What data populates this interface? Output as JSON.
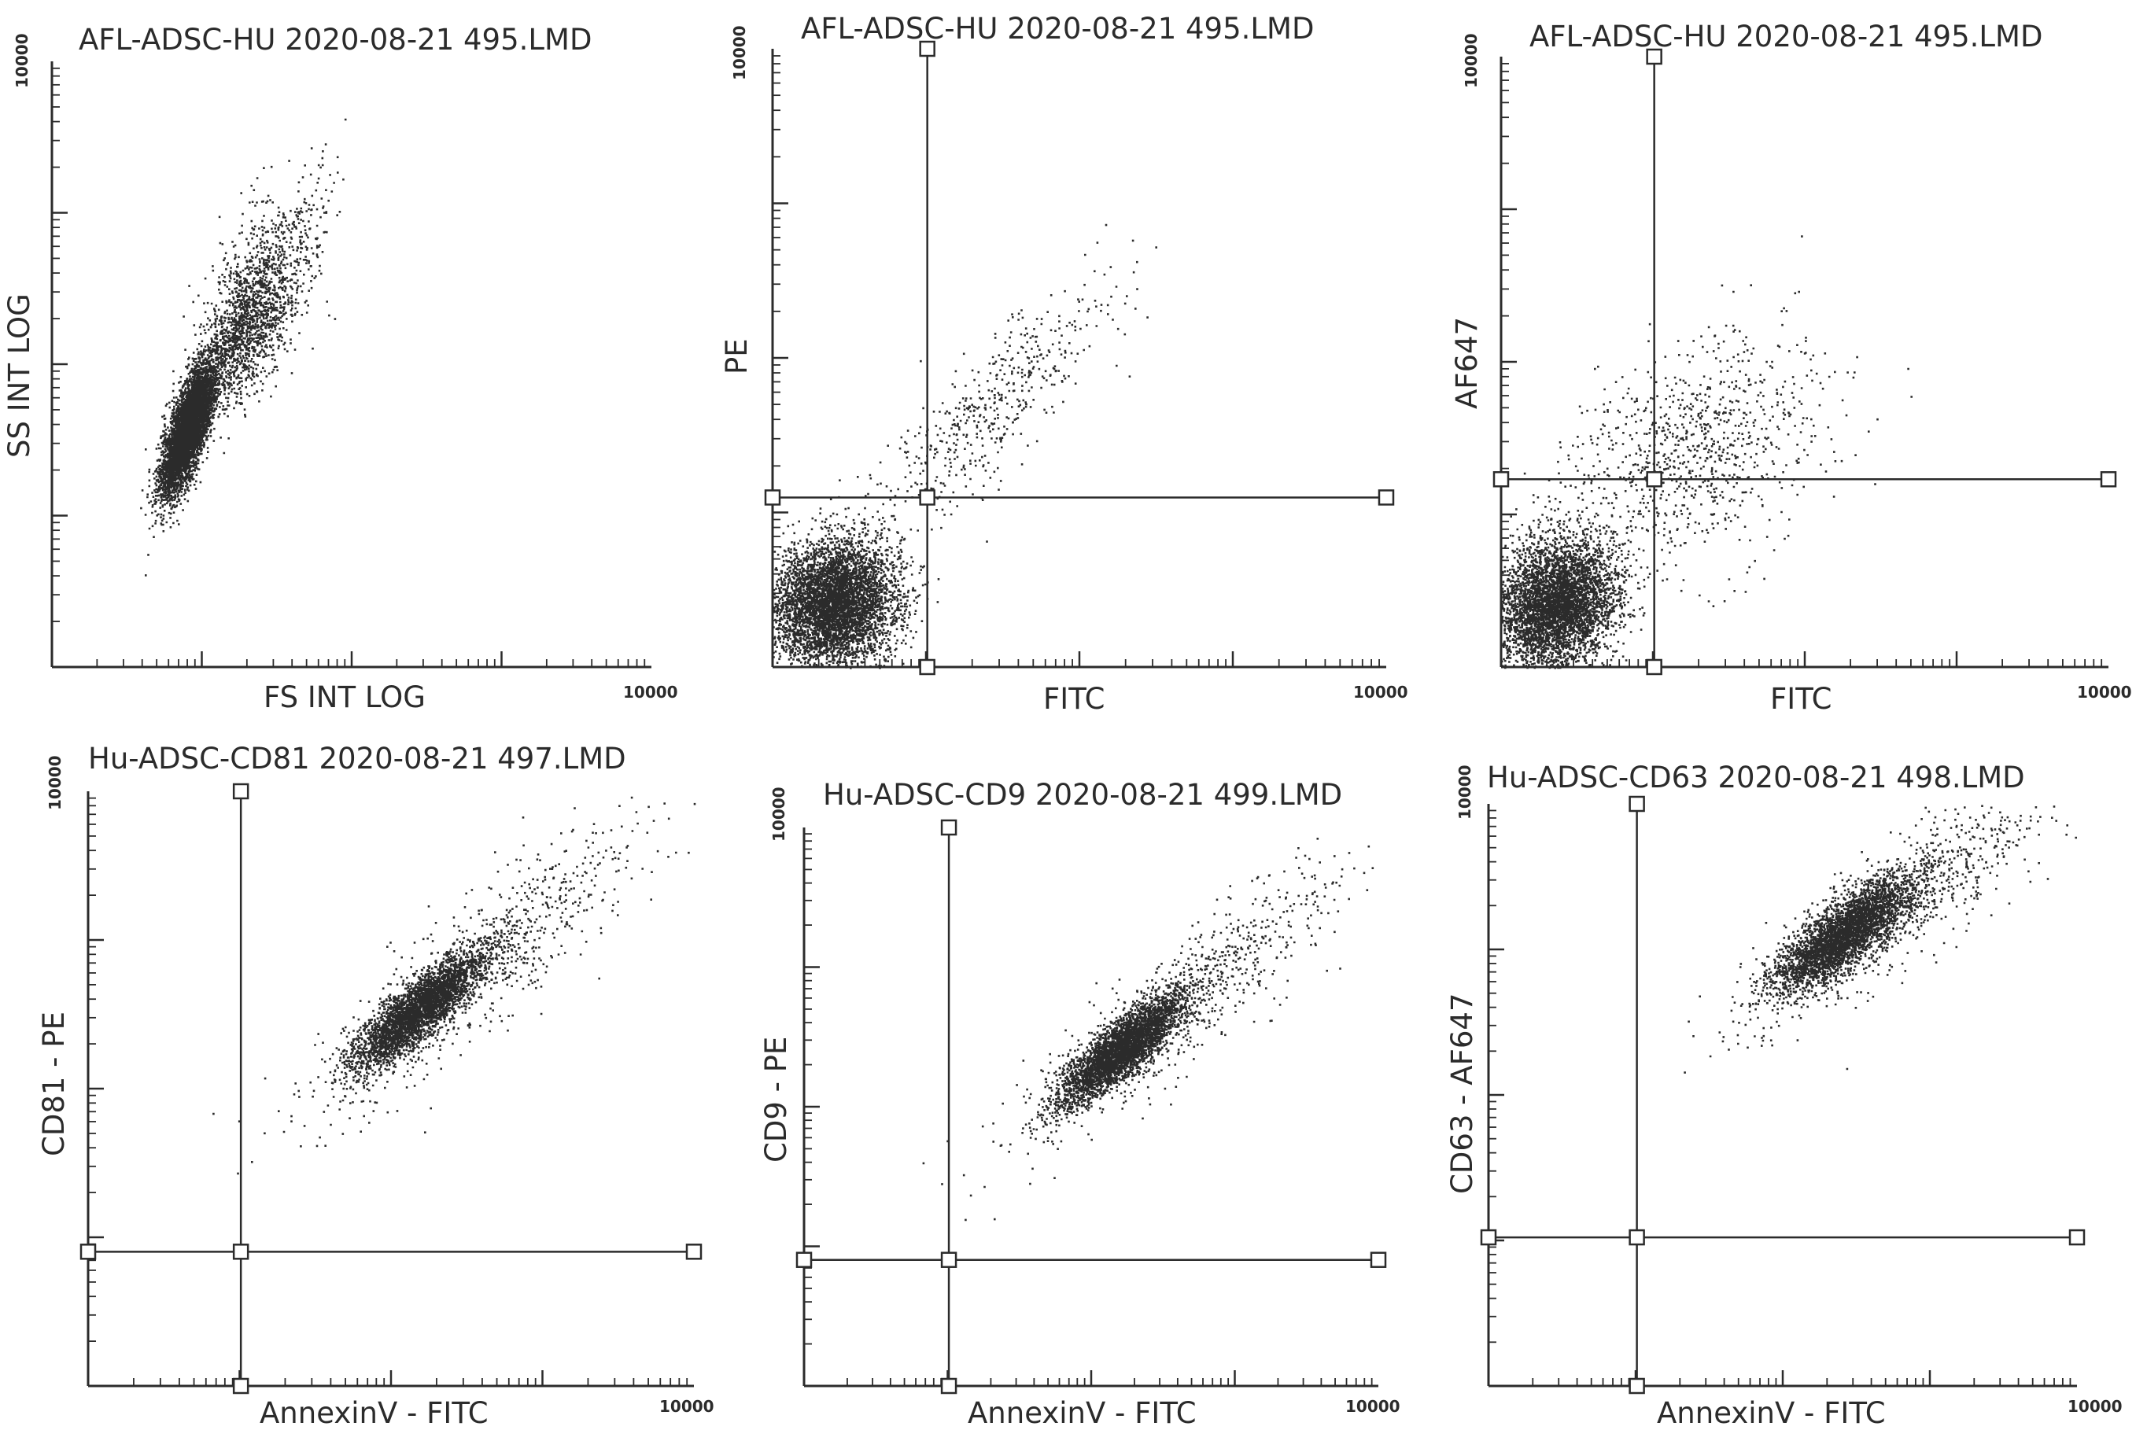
{
  "chart_data": [
    {
      "type": "scatter",
      "title": "AFL-ADSC-HU 2020-08-21 495.LMD",
      "xlabel": "FS INT LOG",
      "ylabel": "SS INT LOG",
      "xscale": "log",
      "yscale": "log",
      "xlim": [
        1,
        10000
      ],
      "ylim": [
        1,
        10000
      ],
      "x_max_label": "10000",
      "y_max_label": "10000",
      "clusters": [
        {
          "cx": 8,
          "cy": 38,
          "sx": 0.09,
          "sy": 0.22,
          "rho": 0.75,
          "n": 5200
        },
        {
          "cx": 20,
          "cy": 180,
          "sx": 0.16,
          "sy": 0.26,
          "rho": 0.6,
          "n": 1400
        },
        {
          "cx": 30,
          "cy": 500,
          "sx": 0.2,
          "sy": 0.3,
          "rho": 0.5,
          "n": 420
        }
      ],
      "gate": null
    },
    {
      "type": "scatter",
      "title": "AFL-ADSC-HU 2020-08-21 495.LMD",
      "xlabel": "FITC",
      "ylabel": "PE",
      "xscale": "log",
      "yscale": "log",
      "xlim": [
        1,
        10000
      ],
      "ylim": [
        1,
        10000
      ],
      "x_max_label": "10000",
      "y_max_label": "10000",
      "clusters": [
        {
          "cx": 2.5,
          "cy": 2.6,
          "sx": 0.2,
          "sy": 0.2,
          "rho": 0.1,
          "n": 5200
        },
        {
          "cx": 25,
          "cy": 45,
          "sx": 0.4,
          "sy": 0.42,
          "rho": 0.85,
          "n": 520
        }
      ],
      "gate": {
        "x": 10.2,
        "y": 12.5
      }
    },
    {
      "type": "scatter",
      "title": "AFL-ADSC-HU 2020-08-21 495.LMD",
      "xlabel": "FITC",
      "ylabel": "AF647",
      "xscale": "log",
      "yscale": "log",
      "xlim": [
        1,
        10000
      ],
      "ylim": [
        1,
        10000
      ],
      "x_max_label": "10000",
      "y_max_label": "10000",
      "clusters": [
        {
          "cx": 2.3,
          "cy": 2.6,
          "sx": 0.2,
          "sy": 0.22,
          "rho": 0.2,
          "n": 4600
        },
        {
          "cx": 18,
          "cy": 26,
          "sx": 0.45,
          "sy": 0.38,
          "rho": 0.4,
          "n": 950
        }
      ],
      "gate": {
        "x": 10.2,
        "y": 17
      }
    },
    {
      "type": "scatter",
      "title": "Hu-ADSC-CD81 2020-08-21 497.LMD",
      "xlabel": "AnnexinV - FITC",
      "ylabel": "CD81 - PE",
      "xscale": "log",
      "yscale": "log",
      "xlim": [
        1,
        10000
      ],
      "ylim": [
        1,
        10000
      ],
      "x_max_label": "10000",
      "y_max_label": "10000",
      "clusters": [
        {
          "cx": 150,
          "cy": 340,
          "sx": 0.22,
          "sy": 0.2,
          "rho": 0.85,
          "n": 3600
        },
        {
          "cx": 400,
          "cy": 700,
          "sx": 0.55,
          "sy": 0.5,
          "rho": 0.88,
          "n": 750
        }
      ],
      "gate": {
        "x": 10.2,
        "y": 8
      }
    },
    {
      "type": "scatter",
      "title": "Hu-ADSC-CD9 2020-08-21 499.LMD",
      "xlabel": "AnnexinV - FITC",
      "ylabel": "CD9 - PE",
      "xscale": "log",
      "yscale": "log",
      "xlim": [
        1,
        10000
      ],
      "ylim": [
        1,
        10000
      ],
      "x_max_label": "10000",
      "y_max_label": "10000",
      "clusters": [
        {
          "cx": 160,
          "cy": 260,
          "sx": 0.22,
          "sy": 0.2,
          "rho": 0.85,
          "n": 3600
        },
        {
          "cx": 450,
          "cy": 600,
          "sx": 0.55,
          "sy": 0.5,
          "rho": 0.88,
          "n": 750
        }
      ],
      "gate": {
        "x": 10.2,
        "y": 8
      }
    },
    {
      "type": "scatter",
      "title": "Hu-ADSC-CD63 2020-08-21 498.LMD",
      "xlabel": "AnnexinV - FITC",
      "ylabel": "CD63 - AF647",
      "xscale": "log",
      "yscale": "log",
      "xlim": [
        1,
        10000
      ],
      "ylim": [
        1,
        10000
      ],
      "x_max_label": "10000",
      "y_max_label": "10000",
      "clusters": [
        {
          "cx": 260,
          "cy": 1300,
          "sx": 0.24,
          "sy": 0.2,
          "rho": 0.8,
          "n": 3600
        },
        {
          "cx": 700,
          "cy": 2200,
          "sx": 0.55,
          "sy": 0.42,
          "rho": 0.85,
          "n": 750
        }
      ],
      "gate": {
        "x": 10.2,
        "y": 10.5
      }
    }
  ]
}
